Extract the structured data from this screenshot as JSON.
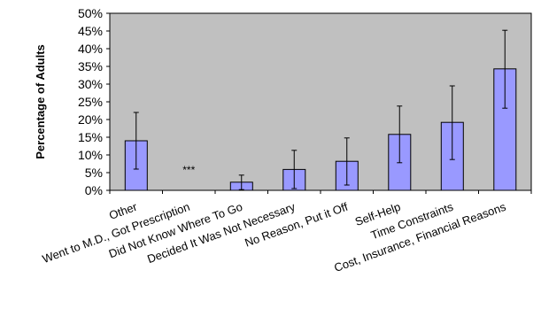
{
  "chart_data": {
    "type": "bar",
    "title": "",
    "xlabel": "",
    "ylabel": "Percentage of Adults",
    "ylim": [
      0,
      50
    ],
    "y_ticks": [
      "0%",
      "5%",
      "10%",
      "15%",
      "20%",
      "25%",
      "30%",
      "35%",
      "40%",
      "45%",
      "50%"
    ],
    "grid": false,
    "legend": "none",
    "categories": [
      "Other",
      "Went to M.D., Got Prescription",
      "Did Not Know Where To Go",
      "Decided It Was Not Necessary",
      "No Reason, Put it Off",
      "Self-Help",
      "Time Constraints",
      "Cost, Insurance, Financial Reasons"
    ],
    "values": [
      14.0,
      0.0,
      2.3,
      5.9,
      8.2,
      15.8,
      19.2,
      34.3
    ],
    "error_bars": [
      [
        6.0,
        22.0
      ],
      null,
      [
        0.2,
        4.3
      ],
      [
        0.5,
        11.3
      ],
      [
        1.5,
        14.8
      ],
      [
        7.8,
        23.8
      ],
      [
        8.7,
        29.5
      ],
      [
        23.2,
        45.2
      ]
    ],
    "annotations": [
      {
        "category": "Went to M.D., Got Prescription",
        "text": "***"
      }
    ],
    "colors": {
      "plot_background": "#c0c0c0",
      "bar_fill": "#9999ff",
      "bar_stroke": "#000000",
      "axis": "#000000"
    }
  }
}
